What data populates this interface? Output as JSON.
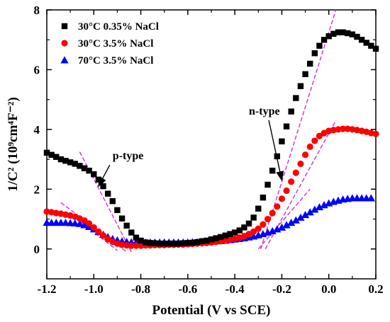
{
  "chart_data": {
    "type": "scatter",
    "xlabel": "Potential (V vs SCE)",
    "ylabel": "1/C² (10⁹cm⁴F⁻²)",
    "xlim": [
      -1.2,
      0.2
    ],
    "ylim": [
      -1,
      8
    ],
    "xticks": [
      "-1.2",
      "-1.0",
      "-0.8",
      "-0.6",
      "-0.4",
      "-0.2",
      "0.0",
      "0.2"
    ],
    "yticks": [
      "0",
      "2",
      "4",
      "6",
      "8"
    ],
    "legend_position": "top-left",
    "annotations": [
      {
        "text": "p-type",
        "x": -0.92,
        "y": 3.0,
        "arrow_to": [
          -0.98,
          2.1
        ]
      },
      {
        "text": "n-type",
        "x": -0.34,
        "y": 4.5,
        "arrow_to": [
          -0.2,
          2.3
        ]
      }
    ],
    "fit_line_color": "#cc33cc",
    "series": [
      {
        "name": "30°C 0.35% NaCl",
        "marker": "square",
        "color": "#000000",
        "x": [
          -1.2,
          -1.18,
          -1.16,
          -1.14,
          -1.12,
          -1.1,
          -1.08,
          -1.06,
          -1.04,
          -1.02,
          -1.0,
          -0.98,
          -0.96,
          -0.94,
          -0.92,
          -0.9,
          -0.88,
          -0.86,
          -0.84,
          -0.82,
          -0.8,
          -0.78,
          -0.76,
          -0.74,
          -0.72,
          -0.7,
          -0.68,
          -0.66,
          -0.64,
          -0.62,
          -0.6,
          -0.58,
          -0.56,
          -0.54,
          -0.52,
          -0.5,
          -0.48,
          -0.46,
          -0.44,
          -0.42,
          -0.4,
          -0.38,
          -0.36,
          -0.34,
          -0.32,
          -0.3,
          -0.28,
          -0.26,
          -0.24,
          -0.22,
          -0.2,
          -0.18,
          -0.16,
          -0.14,
          -0.12,
          -0.1,
          -0.08,
          -0.06,
          -0.04,
          -0.02,
          0.0,
          0.02,
          0.04,
          0.06,
          0.08,
          0.1,
          0.12,
          0.14,
          0.16,
          0.18,
          0.2
        ],
        "y": [
          3.22,
          3.15,
          3.08,
          3.0,
          2.95,
          2.9,
          2.85,
          2.78,
          2.7,
          2.62,
          2.5,
          2.32,
          2.1,
          1.85,
          1.6,
          1.3,
          1.02,
          0.78,
          0.55,
          0.38,
          0.28,
          0.22,
          0.2,
          0.19,
          0.18,
          0.18,
          0.18,
          0.18,
          0.18,
          0.19,
          0.2,
          0.21,
          0.23,
          0.26,
          0.28,
          0.32,
          0.36,
          0.4,
          0.45,
          0.5,
          0.55,
          0.62,
          0.72,
          0.85,
          1.05,
          1.35,
          1.72,
          2.15,
          2.62,
          3.1,
          3.6,
          4.1,
          4.6,
          5.05,
          5.45,
          5.85,
          6.2,
          6.55,
          6.8,
          7.0,
          7.12,
          7.2,
          7.25,
          7.25,
          7.22,
          7.18,
          7.1,
          7.0,
          6.9,
          6.8,
          6.7
        ]
      },
      {
        "name": "30°C 3.5% NaCl",
        "marker": "circle",
        "color": "#ff0000",
        "x": [
          -1.2,
          -1.18,
          -1.16,
          -1.14,
          -1.12,
          -1.1,
          -1.08,
          -1.06,
          -1.04,
          -1.02,
          -1.0,
          -0.98,
          -0.96,
          -0.94,
          -0.92,
          -0.9,
          -0.88,
          -0.86,
          -0.84,
          -0.82,
          -0.8,
          -0.78,
          -0.76,
          -0.74,
          -0.72,
          -0.7,
          -0.68,
          -0.66,
          -0.64,
          -0.62,
          -0.6,
          -0.58,
          -0.56,
          -0.54,
          -0.52,
          -0.5,
          -0.48,
          -0.46,
          -0.44,
          -0.42,
          -0.4,
          -0.38,
          -0.36,
          -0.34,
          -0.32,
          -0.3,
          -0.28,
          -0.26,
          -0.24,
          -0.22,
          -0.2,
          -0.18,
          -0.16,
          -0.14,
          -0.12,
          -0.1,
          -0.08,
          -0.06,
          -0.04,
          -0.02,
          0.0,
          0.02,
          0.04,
          0.06,
          0.08,
          0.1,
          0.12,
          0.14,
          0.16,
          0.18,
          0.2
        ],
        "y": [
          1.25,
          1.23,
          1.2,
          1.18,
          1.15,
          1.12,
          1.08,
          1.02,
          0.95,
          0.85,
          0.72,
          0.58,
          0.45,
          0.33,
          0.24,
          0.18,
          0.14,
          0.12,
          0.11,
          0.11,
          0.11,
          0.12,
          0.12,
          0.13,
          0.13,
          0.13,
          0.14,
          0.14,
          0.15,
          0.15,
          0.16,
          0.17,
          0.18,
          0.19,
          0.2,
          0.22,
          0.24,
          0.26,
          0.28,
          0.31,
          0.34,
          0.38,
          0.43,
          0.5,
          0.58,
          0.68,
          0.82,
          1.0,
          1.2,
          1.42,
          1.68,
          1.95,
          2.25,
          2.55,
          2.85,
          3.15,
          3.42,
          3.62,
          3.78,
          3.88,
          3.95,
          3.98,
          4.0,
          4.02,
          4.02,
          4.0,
          3.98,
          3.95,
          3.92,
          3.88,
          3.85
        ]
      },
      {
        "name": "70°C 3.5% NaCl",
        "marker": "triangle",
        "color": "#0000ff",
        "x": [
          -1.2,
          -1.18,
          -1.16,
          -1.14,
          -1.12,
          -1.1,
          -1.08,
          -1.06,
          -1.04,
          -1.02,
          -1.0,
          -0.98,
          -0.96,
          -0.94,
          -0.92,
          -0.9,
          -0.88,
          -0.86,
          -0.84,
          -0.82,
          -0.8,
          -0.78,
          -0.76,
          -0.74,
          -0.72,
          -0.7,
          -0.68,
          -0.66,
          -0.64,
          -0.62,
          -0.6,
          -0.58,
          -0.56,
          -0.54,
          -0.52,
          -0.5,
          -0.48,
          -0.46,
          -0.44,
          -0.42,
          -0.4,
          -0.38,
          -0.36,
          -0.34,
          -0.32,
          -0.3,
          -0.28,
          -0.26,
          -0.24,
          -0.22,
          -0.2,
          -0.18,
          -0.16,
          -0.14,
          -0.12,
          -0.1,
          -0.08,
          -0.06,
          -0.04,
          -0.02,
          0.0,
          0.02,
          0.04,
          0.06,
          0.08,
          0.1,
          0.12,
          0.14,
          0.16,
          0.18
        ],
        "y": [
          0.88,
          0.88,
          0.88,
          0.88,
          0.88,
          0.87,
          0.86,
          0.84,
          0.8,
          0.74,
          0.66,
          0.57,
          0.48,
          0.4,
          0.34,
          0.29,
          0.26,
          0.24,
          0.23,
          0.22,
          0.22,
          0.22,
          0.22,
          0.22,
          0.22,
          0.22,
          0.22,
          0.22,
          0.22,
          0.22,
          0.22,
          0.23,
          0.23,
          0.24,
          0.24,
          0.25,
          0.26,
          0.27,
          0.28,
          0.3,
          0.32,
          0.34,
          0.36,
          0.39,
          0.42,
          0.46,
          0.5,
          0.55,
          0.6,
          0.66,
          0.72,
          0.8,
          0.88,
          0.96,
          1.05,
          1.14,
          1.23,
          1.32,
          1.4,
          1.47,
          1.53,
          1.58,
          1.62,
          1.66,
          1.68,
          1.7,
          1.7,
          1.7,
          1.7,
          1.7
        ]
      }
    ],
    "fit_lines": [
      {
        "x": [
          -1.06,
          -0.84
        ],
        "y": [
          3.25,
          -0.1
        ]
      },
      {
        "x": [
          -0.29,
          0.03
        ],
        "y": [
          0.0,
          8.0
        ]
      },
      {
        "x": [
          -0.27,
          0.03
        ],
        "y": [
          0.0,
          4.3
        ]
      },
      {
        "x": [
          -0.3,
          -0.08
        ],
        "y": [
          0.0,
          2.0
        ]
      },
      {
        "x": [
          -1.14,
          -0.86
        ],
        "y": [
          1.55,
          -0.1
        ]
      },
      {
        "x": [
          -1.08,
          -0.9
        ],
        "y": [
          1.05,
          -0.05
        ]
      }
    ]
  }
}
